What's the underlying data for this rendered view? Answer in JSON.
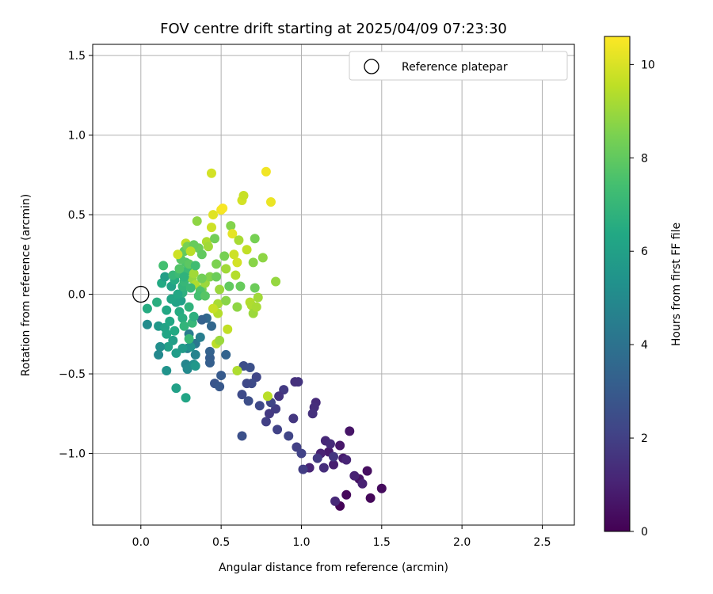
{
  "chart_data": {
    "type": "scatter",
    "title": "FOV centre drift starting at 2025/04/09 07:23:30",
    "xlabel": "Angular distance from reference (arcmin)",
    "ylabel": "Rotation from reference (arcmin)",
    "xlim": [
      -0.3,
      2.7
    ],
    "ylim": [
      -1.45,
      1.57
    ],
    "xticks": [
      0.0,
      0.5,
      1.0,
      1.5,
      2.0,
      2.5
    ],
    "xtick_labels": [
      "0.0",
      "0.5",
      "1.0",
      "1.5",
      "2.0",
      "2.5"
    ],
    "yticks": [
      -1.0,
      -0.5,
      0.0,
      0.5,
      1.0,
      1.5
    ],
    "ytick_labels": [
      "−1.0",
      "−0.5",
      "0.0",
      "0.5",
      "1.0",
      "1.5"
    ],
    "grid": true,
    "legend": {
      "position": "top-right",
      "entries": [
        "Reference platepar"
      ]
    },
    "reference_point": {
      "x": 0.0,
      "y": 0.0,
      "label": "Reference platepar"
    },
    "colorbar": {
      "label": "Hours from first FF file",
      "min": 0,
      "max": 10.6,
      "ticks": [
        0,
        2,
        4,
        6,
        8,
        10
      ],
      "colormap": "viridis"
    },
    "points": [
      {
        "x": 1.24,
        "y": -1.33,
        "h": 0.1
      },
      {
        "x": 1.43,
        "y": -1.28,
        "h": 0.2
      },
      {
        "x": 1.5,
        "y": -1.22,
        "h": 0.3
      },
      {
        "x": 1.28,
        "y": -1.26,
        "h": 0.2
      },
      {
        "x": 1.41,
        "y": -1.11,
        "h": 0.4
      },
      {
        "x": 1.36,
        "y": -1.16,
        "h": 0.5
      },
      {
        "x": 1.3,
        "y": -0.86,
        "h": 0.6
      },
      {
        "x": 1.24,
        "y": -0.95,
        "h": 0.7
      },
      {
        "x": 1.17,
        "y": -0.99,
        "h": 0.8
      },
      {
        "x": 1.2,
        "y": -1.07,
        "h": 0.9
      },
      {
        "x": 1.26,
        "y": -1.03,
        "h": 0.8
      },
      {
        "x": 1.33,
        "y": -1.14,
        "h": 1.0
      },
      {
        "x": 1.38,
        "y": -1.19,
        "h": 1.0
      },
      {
        "x": 1.21,
        "y": -1.3,
        "h": 1.2
      },
      {
        "x": 1.12,
        "y": -1.0,
        "h": 1.0
      },
      {
        "x": 1.05,
        "y": -1.09,
        "h": 1.1
      },
      {
        "x": 1.15,
        "y": -0.92,
        "h": 1.2
      },
      {
        "x": 1.18,
        "y": -0.94,
        "h": 1.3
      },
      {
        "x": 1.28,
        "y": -1.04,
        "h": 1.1
      },
      {
        "x": 1.14,
        "y": -1.09,
        "h": 1.4
      },
      {
        "x": 1.09,
        "y": -0.68,
        "h": 1.3
      },
      {
        "x": 1.08,
        "y": -0.71,
        "h": 1.4
      },
      {
        "x": 1.07,
        "y": -0.75,
        "h": 1.5
      },
      {
        "x": 0.98,
        "y": -0.55,
        "h": 1.6
      },
      {
        "x": 0.96,
        "y": -0.55,
        "h": 1.5
      },
      {
        "x": 0.95,
        "y": -0.78,
        "h": 1.7
      },
      {
        "x": 0.89,
        "y": -0.6,
        "h": 1.8
      },
      {
        "x": 0.86,
        "y": -0.64,
        "h": 1.6
      },
      {
        "x": 0.84,
        "y": -0.72,
        "h": 1.9
      },
      {
        "x": 0.8,
        "y": -0.75,
        "h": 1.8
      },
      {
        "x": 0.78,
        "y": -0.8,
        "h": 2.0
      },
      {
        "x": 0.85,
        "y": -0.85,
        "h": 2.1
      },
      {
        "x": 0.92,
        "y": -0.89,
        "h": 2.2
      },
      {
        "x": 0.97,
        "y": -0.96,
        "h": 2.0
      },
      {
        "x": 1.01,
        "y": -1.1,
        "h": 1.9
      },
      {
        "x": 1.1,
        "y": -1.03,
        "h": 1.8
      },
      {
        "x": 1.2,
        "y": -1.02,
        "h": 1.7
      },
      {
        "x": 1.0,
        "y": -1.0,
        "h": 2.1
      },
      {
        "x": 0.72,
        "y": -0.52,
        "h": 2.2
      },
      {
        "x": 0.74,
        "y": -0.7,
        "h": 2.3
      },
      {
        "x": 0.69,
        "y": -0.56,
        "h": 2.4
      },
      {
        "x": 0.66,
        "y": -0.56,
        "h": 2.3
      },
      {
        "x": 0.64,
        "y": -0.45,
        "h": 2.5
      },
      {
        "x": 0.68,
        "y": -0.46,
        "h": 2.6
      },
      {
        "x": 0.63,
        "y": -0.63,
        "h": 2.4
      },
      {
        "x": 0.67,
        "y": -0.67,
        "h": 2.5
      },
      {
        "x": 0.63,
        "y": -0.89,
        "h": 2.6
      },
      {
        "x": 0.81,
        "y": -0.68,
        "h": 2.2
      },
      {
        "x": 0.46,
        "y": -0.56,
        "h": 2.8
      },
      {
        "x": 0.49,
        "y": -0.58,
        "h": 2.9
      },
      {
        "x": 0.5,
        "y": -0.51,
        "h": 3.0
      },
      {
        "x": 0.43,
        "y": -0.4,
        "h": 3.1
      },
      {
        "x": 0.43,
        "y": -0.43,
        "h": 3.2
      },
      {
        "x": 0.43,
        "y": -0.36,
        "h": 3.3
      },
      {
        "x": 0.53,
        "y": -0.38,
        "h": 3.4
      },
      {
        "x": 0.44,
        "y": -0.2,
        "h": 3.5
      },
      {
        "x": 0.41,
        "y": -0.15,
        "h": 3.6
      },
      {
        "x": 0.38,
        "y": -0.16,
        "h": 3.3
      },
      {
        "x": 0.34,
        "y": -0.31,
        "h": 4.2
      },
      {
        "x": 0.3,
        "y": -0.25,
        "h": 4.4
      },
      {
        "x": 0.29,
        "y": -0.34,
        "h": 4.6
      },
      {
        "x": 0.28,
        "y": -0.44,
        "h": 4.8
      },
      {
        "x": 0.29,
        "y": -0.47,
        "h": 5.0
      },
      {
        "x": 0.34,
        "y": -0.38,
        "h": 4.7
      },
      {
        "x": 0.37,
        "y": -0.27,
        "h": 4.5
      },
      {
        "x": 0.33,
        "y": -0.44,
        "h": 5.2
      },
      {
        "x": 0.31,
        "y": -0.33,
        "h": 5.4
      },
      {
        "x": 0.34,
        "y": -0.45,
        "h": 5.6
      },
      {
        "x": 0.26,
        "y": -0.34,
        "h": 5.7
      },
      {
        "x": 0.22,
        "y": -0.37,
        "h": 5.8
      },
      {
        "x": 0.2,
        "y": -0.29,
        "h": 5.9
      },
      {
        "x": 0.17,
        "y": -0.33,
        "h": 6.0
      },
      {
        "x": 0.12,
        "y": -0.33,
        "h": 5.2
      },
      {
        "x": 0.11,
        "y": -0.38,
        "h": 4.9
      },
      {
        "x": 0.16,
        "y": -0.48,
        "h": 5.4
      },
      {
        "x": 0.22,
        "y": -0.59,
        "h": 6.0
      },
      {
        "x": 0.28,
        "y": -0.65,
        "h": 6.2
      },
      {
        "x": 0.04,
        "y": -0.19,
        "h": 5.1
      },
      {
        "x": 0.04,
        "y": -0.09,
        "h": 6.5
      },
      {
        "x": 0.1,
        "y": -0.05,
        "h": 6.6
      },
      {
        "x": 0.11,
        "y": -0.2,
        "h": 5.6
      },
      {
        "x": 0.15,
        "y": -0.21,
        "h": 6.1
      },
      {
        "x": 0.16,
        "y": -0.25,
        "h": 6.2
      },
      {
        "x": 0.18,
        "y": -0.17,
        "h": 6.3
      },
      {
        "x": 0.21,
        "y": -0.23,
        "h": 6.4
      },
      {
        "x": 0.24,
        "y": -0.11,
        "h": 6.5
      },
      {
        "x": 0.26,
        "y": -0.15,
        "h": 6.6
      },
      {
        "x": 0.27,
        "y": -0.2,
        "h": 6.9
      },
      {
        "x": 0.3,
        "y": -0.28,
        "h": 7.1
      },
      {
        "x": 0.32,
        "y": -0.18,
        "h": 7.0
      },
      {
        "x": 0.33,
        "y": -0.14,
        "h": 6.7
      },
      {
        "x": 0.3,
        "y": -0.08,
        "h": 6.8
      },
      {
        "x": 0.25,
        "y": -0.04,
        "h": 6.0
      },
      {
        "x": 0.22,
        "y": -0.05,
        "h": 6.1
      },
      {
        "x": 0.19,
        "y": -0.03,
        "h": 6.2
      },
      {
        "x": 0.16,
        "y": -0.1,
        "h": 6.3
      },
      {
        "x": 0.13,
        "y": 0.07,
        "h": 6.4
      },
      {
        "x": 0.15,
        "y": 0.11,
        "h": 5.9
      },
      {
        "x": 0.19,
        "y": 0.05,
        "h": 6.1
      },
      {
        "x": 0.21,
        "y": 0.09,
        "h": 6.5
      },
      {
        "x": 0.14,
        "y": 0.18,
        "h": 7.4
      },
      {
        "x": 0.2,
        "y": 0.12,
        "h": 7.0
      },
      {
        "x": 0.24,
        "y": 0.13,
        "h": 7.2
      },
      {
        "x": 0.26,
        "y": 0.01,
        "h": 6.7
      },
      {
        "x": 0.26,
        "y": 0.05,
        "h": 6.9
      },
      {
        "x": 0.27,
        "y": 0.08,
        "h": 7.0
      },
      {
        "x": 0.28,
        "y": 0.2,
        "h": 7.6
      },
      {
        "x": 0.29,
        "y": 0.15,
        "h": 7.2
      },
      {
        "x": 0.25,
        "y": 0.22,
        "h": 7.8
      },
      {
        "x": 0.27,
        "y": 0.27,
        "h": 8.0
      },
      {
        "x": 0.23,
        "y": 0.25,
        "h": 9.8
      },
      {
        "x": 0.28,
        "y": 0.32,
        "h": 9.6
      },
      {
        "x": 0.3,
        "y": 0.19,
        "h": 7.9
      },
      {
        "x": 0.32,
        "y": 0.1,
        "h": 8.9
      },
      {
        "x": 0.33,
        "y": 0.13,
        "h": 9.1
      },
      {
        "x": 0.34,
        "y": 0.06,
        "h": 9.3
      },
      {
        "x": 0.35,
        "y": 0.46,
        "h": 8.8
      },
      {
        "x": 0.36,
        "y": 0.29,
        "h": 8.2
      },
      {
        "x": 0.38,
        "y": 0.25,
        "h": 8.0
      },
      {
        "x": 0.38,
        "y": 0.03,
        "h": 8.4
      },
      {
        "x": 0.4,
        "y": 0.07,
        "h": 9.0
      },
      {
        "x": 0.41,
        "y": 0.33,
        "h": 9.3
      },
      {
        "x": 0.42,
        "y": 0.3,
        "h": 9.1
      },
      {
        "x": 0.43,
        "y": 0.11,
        "h": 8.6
      },
      {
        "x": 0.44,
        "y": 0.42,
        "h": 9.8
      },
      {
        "x": 0.44,
        "y": 0.76,
        "h": 9.9
      },
      {
        "x": 0.45,
        "y": 0.5,
        "h": 10.1
      },
      {
        "x": 0.46,
        "y": 0.35,
        "h": 8.3
      },
      {
        "x": 0.47,
        "y": 0.11,
        "h": 8.2
      },
      {
        "x": 0.47,
        "y": 0.19,
        "h": 8.5
      },
      {
        "x": 0.48,
        "y": -0.12,
        "h": 9.4
      },
      {
        "x": 0.48,
        "y": -0.06,
        "h": 9.2
      },
      {
        "x": 0.49,
        "y": 0.03,
        "h": 9.0
      },
      {
        "x": 0.5,
        "y": 0.53,
        "h": 10.4
      },
      {
        "x": 0.51,
        "y": 0.54,
        "h": 10.5
      },
      {
        "x": 0.52,
        "y": 0.24,
        "h": 8.4
      },
      {
        "x": 0.53,
        "y": 0.16,
        "h": 9.1
      },
      {
        "x": 0.53,
        "y": -0.04,
        "h": 8.7
      },
      {
        "x": 0.54,
        "y": -0.22,
        "h": 9.6
      },
      {
        "x": 0.55,
        "y": 0.05,
        "h": 8.0
      },
      {
        "x": 0.56,
        "y": 0.43,
        "h": 8.6
      },
      {
        "x": 0.57,
        "y": 0.38,
        "h": 10.2
      },
      {
        "x": 0.58,
        "y": 0.25,
        "h": 9.8
      },
      {
        "x": 0.59,
        "y": 0.12,
        "h": 9.4
      },
      {
        "x": 0.6,
        "y": 0.2,
        "h": 9.9
      },
      {
        "x": 0.6,
        "y": -0.08,
        "h": 8.8
      },
      {
        "x": 0.61,
        "y": 0.34,
        "h": 9.2
      },
      {
        "x": 0.62,
        "y": 0.05,
        "h": 8.1
      },
      {
        "x": 0.63,
        "y": 0.59,
        "h": 9.9
      },
      {
        "x": 0.64,
        "y": 0.62,
        "h": 9.7
      },
      {
        "x": 0.66,
        "y": 0.28,
        "h": 9.6
      },
      {
        "x": 0.68,
        "y": -0.05,
        "h": 9.4
      },
      {
        "x": 0.69,
        "y": -0.07,
        "h": 9.3
      },
      {
        "x": 0.7,
        "y": 0.2,
        "h": 8.7
      },
      {
        "x": 0.7,
        "y": -0.12,
        "h": 9.0
      },
      {
        "x": 0.71,
        "y": 0.35,
        "h": 8.4
      },
      {
        "x": 0.71,
        "y": 0.04,
        "h": 8.2
      },
      {
        "x": 0.72,
        "y": -0.08,
        "h": 9.2
      },
      {
        "x": 0.73,
        "y": -0.02,
        "h": 9.1
      },
      {
        "x": 0.76,
        "y": 0.23,
        "h": 8.8
      },
      {
        "x": 0.78,
        "y": 0.77,
        "h": 10.4
      },
      {
        "x": 0.79,
        "y": -0.64,
        "h": 9.5
      },
      {
        "x": 0.81,
        "y": 0.58,
        "h": 10.3
      },
      {
        "x": 0.84,
        "y": 0.08,
        "h": 8.9
      },
      {
        "x": 0.6,
        "y": -0.48,
        "h": 9.3
      },
      {
        "x": 0.47,
        "y": -0.31,
        "h": 9.5
      },
      {
        "x": 0.49,
        "y": -0.29,
        "h": 9.0
      },
      {
        "x": 0.45,
        "y": -0.09,
        "h": 9.7
      },
      {
        "x": 0.38,
        "y": 0.1,
        "h": 8.3
      },
      {
        "x": 0.37,
        "y": 0.02,
        "h": 7.6
      },
      {
        "x": 0.36,
        "y": -0.01,
        "h": 7.4
      },
      {
        "x": 0.4,
        "y": -0.01,
        "h": 7.8
      },
      {
        "x": 0.34,
        "y": 0.18,
        "h": 7.3
      },
      {
        "x": 0.31,
        "y": 0.04,
        "h": 7.1
      },
      {
        "x": 0.27,
        "y": 0.11,
        "h": 6.8
      },
      {
        "x": 0.23,
        "y": 0.0,
        "h": 6.3
      },
      {
        "x": 0.29,
        "y": 0.3,
        "h": 8.4
      },
      {
        "x": 0.33,
        "y": 0.31,
        "h": 8.1
      },
      {
        "x": 0.31,
        "y": 0.27,
        "h": 9.5
      },
      {
        "x": 0.24,
        "y": 0.16,
        "h": 7.7
      }
    ]
  }
}
